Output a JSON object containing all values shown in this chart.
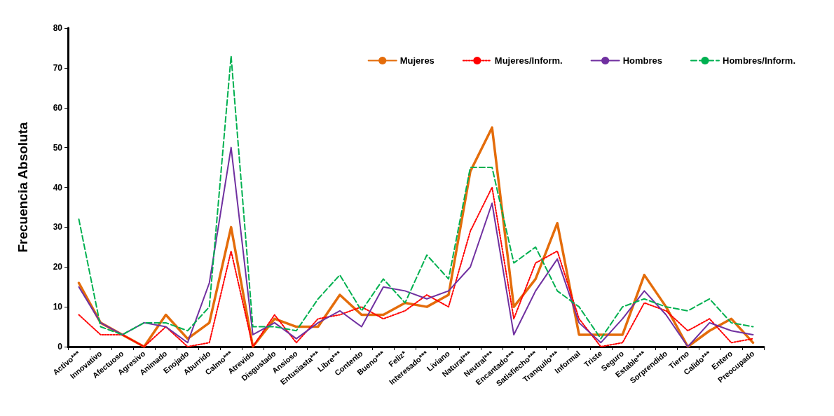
{
  "chart_data": {
    "type": "line",
    "ylabel": "Frecuencia Absoluta",
    "categories": [
      "Activo***",
      "Innovativo",
      "Afectuoso",
      "Agresivo",
      "Animado",
      "Enojado",
      "Aburrido",
      "Calmo***",
      "Atrevido",
      "Disgustado",
      "Ansioso",
      "Entusiasta***",
      "Libre***",
      "Contento",
      "Bueno***",
      "Feliz*",
      "Interesado***",
      "Liviano",
      "Natural***",
      "Neutral***",
      "Encantado***",
      "Satisfiecho***",
      "Tranquilo***",
      "Informal",
      "Triste",
      "Seguro",
      "Estable***",
      "Sorprendido",
      "Tierno",
      "Calido***",
      "Entero",
      "Preocupado"
    ],
    "series": [
      {
        "name": "Mujeres",
        "color": "#e46c0a",
        "line_style": "solid",
        "values": [
          16,
          6,
          3,
          0,
          8,
          2,
          6,
          30,
          0,
          7,
          5,
          5,
          13,
          8,
          8,
          11,
          10,
          13,
          44,
          55,
          10,
          17,
          31,
          3,
          3,
          3,
          18,
          10,
          0,
          4,
          7,
          1
        ]
      },
      {
        "name": "Mujeres/Inform.",
        "color": "#ff0000",
        "line_style": "dotted",
        "values": [
          8,
          3,
          3,
          0,
          5,
          0,
          1,
          24,
          0,
          8,
          1,
          7,
          8,
          10,
          7,
          9,
          13,
          10,
          29,
          40,
          7,
          21,
          24,
          7,
          0,
          1,
          11,
          9,
          4,
          7,
          1,
          2
        ]
      },
      {
        "name": "Hombres",
        "color": "#7030a0",
        "line_style": "solid",
        "values": [
          15,
          6,
          3,
          6,
          5,
          1,
          16,
          50,
          3,
          6,
          2,
          6,
          9,
          5,
          15,
          14,
          12,
          14,
          20,
          36,
          3,
          14,
          22,
          6,
          1,
          7,
          14,
          8,
          0,
          6,
          4,
          3
        ]
      },
      {
        "name": "Hombres/Inform.",
        "color": "#00b050",
        "line_style": "dashed",
        "values": [
          32,
          5,
          3,
          6,
          6,
          4,
          10,
          73,
          5,
          5,
          4,
          12,
          18,
          9,
          17,
          11,
          23,
          17,
          45,
          45,
          21,
          25,
          14,
          10,
          2,
          10,
          12,
          10,
          9,
          12,
          6,
          5
        ]
      }
    ],
    "ylim": [
      0,
      80
    ],
    "yticks": [
      0,
      10,
      20,
      30,
      40,
      50,
      60,
      70,
      80
    ],
    "grid": false,
    "legend": "top right",
    "marker": "none"
  }
}
